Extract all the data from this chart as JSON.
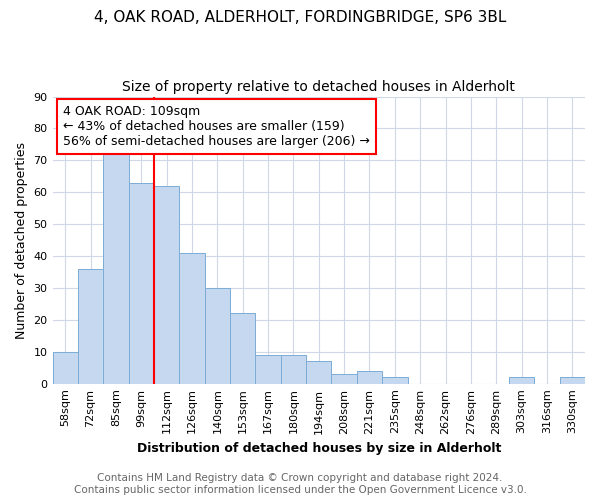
{
  "title1": "4, OAK ROAD, ALDERHOLT, FORDINGBRIDGE, SP6 3BL",
  "title2": "Size of property relative to detached houses in Alderholt",
  "xlabel": "Distribution of detached houses by size in Alderholt",
  "ylabel": "Number of detached properties",
  "categories": [
    "58sqm",
    "72sqm",
    "85sqm",
    "99sqm",
    "112sqm",
    "126sqm",
    "140sqm",
    "153sqm",
    "167sqm",
    "180sqm",
    "194sqm",
    "208sqm",
    "221sqm",
    "235sqm",
    "248sqm",
    "262sqm",
    "276sqm",
    "289sqm",
    "303sqm",
    "316sqm",
    "330sqm"
  ],
  "values": [
    10,
    36,
    73,
    63,
    62,
    41,
    30,
    22,
    9,
    9,
    7,
    3,
    4,
    2,
    0,
    0,
    0,
    0,
    2,
    0,
    2
  ],
  "bar_color": "#c5d8f0",
  "bar_edge_color": "#7badd6",
  "vline_color": "red",
  "vline_x": 3.5,
  "annotation_line1": "4 OAK ROAD: 109sqm",
  "annotation_line2": "← 43% of detached houses are smaller (159)",
  "annotation_line3": "56% of semi-detached houses are larger (206) →",
  "annotation_box_color": "white",
  "annotation_box_edge_color": "red",
  "ylim": [
    0,
    90
  ],
  "yticks": [
    0,
    10,
    20,
    30,
    40,
    50,
    60,
    70,
    80,
    90
  ],
  "footer": "Contains HM Land Registry data © Crown copyright and database right 2024.\nContains public sector information licensed under the Open Government Licence v3.0.",
  "bg_color": "#ffffff",
  "plot_bg_color": "#ffffff",
  "grid_color": "#d0d8e8",
  "title1_fontsize": 11,
  "title2_fontsize": 10,
  "label_fontsize": 9,
  "tick_fontsize": 8,
  "footer_fontsize": 7.5,
  "annot_fontsize": 9
}
